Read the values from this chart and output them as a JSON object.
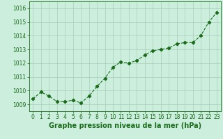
{
  "x": [
    0,
    1,
    2,
    3,
    4,
    5,
    6,
    7,
    8,
    9,
    10,
    11,
    12,
    13,
    14,
    15,
    16,
    17,
    18,
    19,
    20,
    21,
    22,
    23
  ],
  "y": [
    1009.4,
    1009.9,
    1009.6,
    1009.2,
    1009.2,
    1009.3,
    1009.1,
    1009.6,
    1010.3,
    1010.9,
    1011.7,
    1012.1,
    1012.0,
    1012.2,
    1012.6,
    1012.9,
    1013.0,
    1013.1,
    1013.4,
    1013.5,
    1013.5,
    1014.0,
    1015.0,
    1015.7
  ],
  "line_color": "#1a6b1a",
  "marker": "D",
  "marker_size": 2.2,
  "bg_color": "#cceedd",
  "grid_color": "#aaccbb",
  "xlabel": "Graphe pression niveau de la mer (hPa)",
  "xlabel_color": "#1a6b1a",
  "xlabel_fontsize": 7,
  "ylim": [
    1008.5,
    1016.5
  ],
  "yticks": [
    1009,
    1010,
    1011,
    1012,
    1013,
    1014,
    1015,
    1016
  ],
  "xticks": [
    0,
    1,
    2,
    3,
    4,
    5,
    6,
    7,
    8,
    9,
    10,
    11,
    12,
    13,
    14,
    15,
    16,
    17,
    18,
    19,
    20,
    21,
    22,
    23
  ],
  "tick_color": "#1a6b1a",
  "tick_fontsize": 5.5,
  "spine_color": "#1a6b1a",
  "line_width": 0.8,
  "line_style": "--"
}
